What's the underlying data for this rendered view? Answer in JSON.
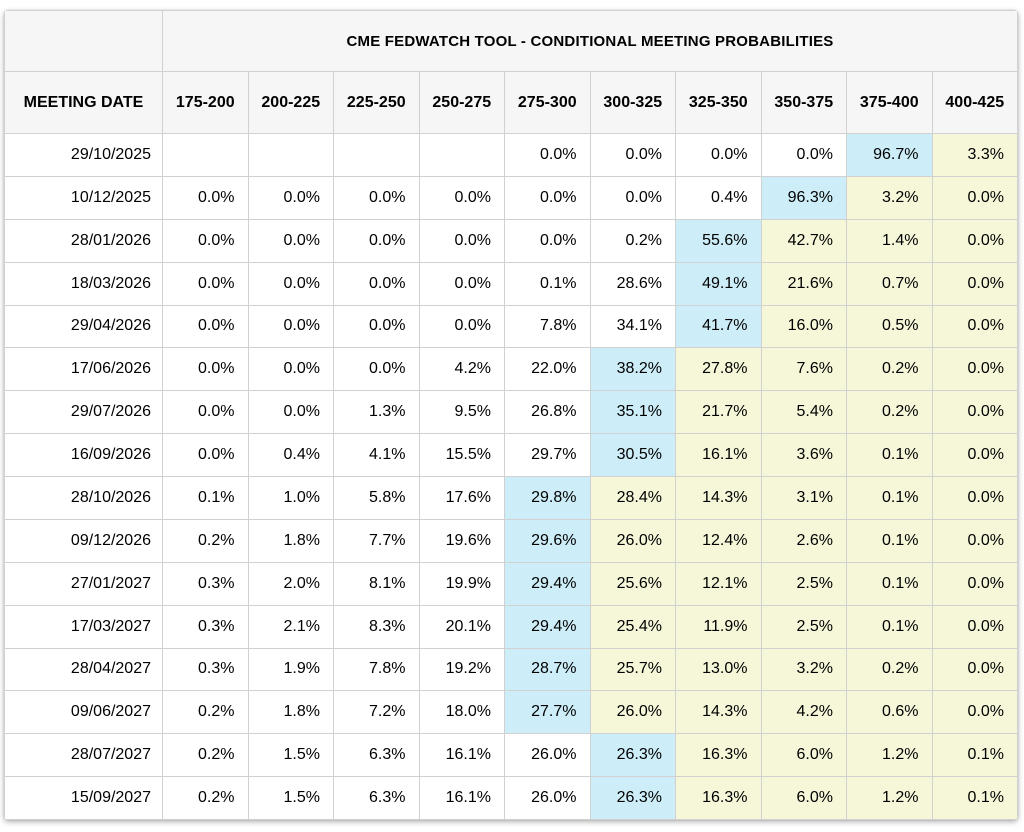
{
  "title": "CME FEDWATCH TOOL - CONDITIONAL MEETING PROBABILITIES",
  "columns": {
    "date_header": "MEETING DATE",
    "rate_bins": [
      "175-200",
      "200-225",
      "225-250",
      "250-275",
      "275-300",
      "300-325",
      "325-350",
      "350-375",
      "375-400",
      "400-425"
    ]
  },
  "colors": {
    "highlight_blue": "#cdeef8",
    "highlight_yellow": "#f6f6d9",
    "header_bg": "#f6f6f6",
    "border": "#d1d1d1",
    "text": "#000000"
  },
  "rows": [
    {
      "date": "29/10/2025",
      "values": [
        "",
        "",
        "",
        "",
        "0.0%",
        "0.0%",
        "0.0%",
        "0.0%",
        "96.7%",
        "3.3%"
      ],
      "highlights": [
        "",
        "",
        "",
        "",
        "",
        "",
        "",
        "",
        "blue",
        "yellow"
      ]
    },
    {
      "date": "10/12/2025",
      "values": [
        "0.0%",
        "0.0%",
        "0.0%",
        "0.0%",
        "0.0%",
        "0.0%",
        "0.4%",
        "96.3%",
        "3.2%",
        "0.0%"
      ],
      "highlights": [
        "",
        "",
        "",
        "",
        "",
        "",
        "",
        "blue",
        "yellow",
        "yellow"
      ]
    },
    {
      "date": "28/01/2026",
      "values": [
        "0.0%",
        "0.0%",
        "0.0%",
        "0.0%",
        "0.0%",
        "0.2%",
        "55.6%",
        "42.7%",
        "1.4%",
        "0.0%"
      ],
      "highlights": [
        "",
        "",
        "",
        "",
        "",
        "",
        "blue",
        "yellow",
        "yellow",
        "yellow"
      ]
    },
    {
      "date": "18/03/2026",
      "values": [
        "0.0%",
        "0.0%",
        "0.0%",
        "0.0%",
        "0.1%",
        "28.6%",
        "49.1%",
        "21.6%",
        "0.7%",
        "0.0%"
      ],
      "highlights": [
        "",
        "",
        "",
        "",
        "",
        "",
        "blue",
        "yellow",
        "yellow",
        "yellow"
      ]
    },
    {
      "date": "29/04/2026",
      "values": [
        "0.0%",
        "0.0%",
        "0.0%",
        "0.0%",
        "7.8%",
        "34.1%",
        "41.7%",
        "16.0%",
        "0.5%",
        "0.0%"
      ],
      "highlights": [
        "",
        "",
        "",
        "",
        "",
        "",
        "blue",
        "yellow",
        "yellow",
        "yellow"
      ]
    },
    {
      "date": "17/06/2026",
      "values": [
        "0.0%",
        "0.0%",
        "0.0%",
        "4.2%",
        "22.0%",
        "38.2%",
        "27.8%",
        "7.6%",
        "0.2%",
        "0.0%"
      ],
      "highlights": [
        "",
        "",
        "",
        "",
        "",
        "blue",
        "yellow",
        "yellow",
        "yellow",
        "yellow"
      ]
    },
    {
      "date": "29/07/2026",
      "values": [
        "0.0%",
        "0.0%",
        "1.3%",
        "9.5%",
        "26.8%",
        "35.1%",
        "21.7%",
        "5.4%",
        "0.2%",
        "0.0%"
      ],
      "highlights": [
        "",
        "",
        "",
        "",
        "",
        "blue",
        "yellow",
        "yellow",
        "yellow",
        "yellow"
      ]
    },
    {
      "date": "16/09/2026",
      "values": [
        "0.0%",
        "0.4%",
        "4.1%",
        "15.5%",
        "29.7%",
        "30.5%",
        "16.1%",
        "3.6%",
        "0.1%",
        "0.0%"
      ],
      "highlights": [
        "",
        "",
        "",
        "",
        "",
        "blue",
        "yellow",
        "yellow",
        "yellow",
        "yellow"
      ]
    },
    {
      "date": "28/10/2026",
      "values": [
        "0.1%",
        "1.0%",
        "5.8%",
        "17.6%",
        "29.8%",
        "28.4%",
        "14.3%",
        "3.1%",
        "0.1%",
        "0.0%"
      ],
      "highlights": [
        "",
        "",
        "",
        "",
        "blue",
        "yellow",
        "yellow",
        "yellow",
        "yellow",
        "yellow"
      ]
    },
    {
      "date": "09/12/2026",
      "values": [
        "0.2%",
        "1.8%",
        "7.7%",
        "19.6%",
        "29.6%",
        "26.0%",
        "12.4%",
        "2.6%",
        "0.1%",
        "0.0%"
      ],
      "highlights": [
        "",
        "",
        "",
        "",
        "blue",
        "yellow",
        "yellow",
        "yellow",
        "yellow",
        "yellow"
      ]
    },
    {
      "date": "27/01/2027",
      "values": [
        "0.3%",
        "2.0%",
        "8.1%",
        "19.9%",
        "29.4%",
        "25.6%",
        "12.1%",
        "2.5%",
        "0.1%",
        "0.0%"
      ],
      "highlights": [
        "",
        "",
        "",
        "",
        "blue",
        "yellow",
        "yellow",
        "yellow",
        "yellow",
        "yellow"
      ]
    },
    {
      "date": "17/03/2027",
      "values": [
        "0.3%",
        "2.1%",
        "8.3%",
        "20.1%",
        "29.4%",
        "25.4%",
        "11.9%",
        "2.5%",
        "0.1%",
        "0.0%"
      ],
      "highlights": [
        "",
        "",
        "",
        "",
        "blue",
        "yellow",
        "yellow",
        "yellow",
        "yellow",
        "yellow"
      ]
    },
    {
      "date": "28/04/2027",
      "values": [
        "0.3%",
        "1.9%",
        "7.8%",
        "19.2%",
        "28.7%",
        "25.7%",
        "13.0%",
        "3.2%",
        "0.2%",
        "0.0%"
      ],
      "highlights": [
        "",
        "",
        "",
        "",
        "blue",
        "yellow",
        "yellow",
        "yellow",
        "yellow",
        "yellow"
      ]
    },
    {
      "date": "09/06/2027",
      "values": [
        "0.2%",
        "1.8%",
        "7.2%",
        "18.0%",
        "27.7%",
        "26.0%",
        "14.3%",
        "4.2%",
        "0.6%",
        "0.0%"
      ],
      "highlights": [
        "",
        "",
        "",
        "",
        "blue",
        "yellow",
        "yellow",
        "yellow",
        "yellow",
        "yellow"
      ]
    },
    {
      "date": "28/07/2027",
      "values": [
        "0.2%",
        "1.5%",
        "6.3%",
        "16.1%",
        "26.0%",
        "26.3%",
        "16.3%",
        "6.0%",
        "1.2%",
        "0.1%"
      ],
      "highlights": [
        "",
        "",
        "",
        "",
        "",
        "blue",
        "yellow",
        "yellow",
        "yellow",
        "yellow"
      ]
    },
    {
      "date": "15/09/2027",
      "values": [
        "0.2%",
        "1.5%",
        "6.3%",
        "16.1%",
        "26.0%",
        "26.3%",
        "16.3%",
        "6.0%",
        "1.2%",
        "0.1%"
      ],
      "highlights": [
        "",
        "",
        "",
        "",
        "",
        "blue",
        "yellow",
        "yellow",
        "yellow",
        "yellow"
      ]
    }
  ]
}
